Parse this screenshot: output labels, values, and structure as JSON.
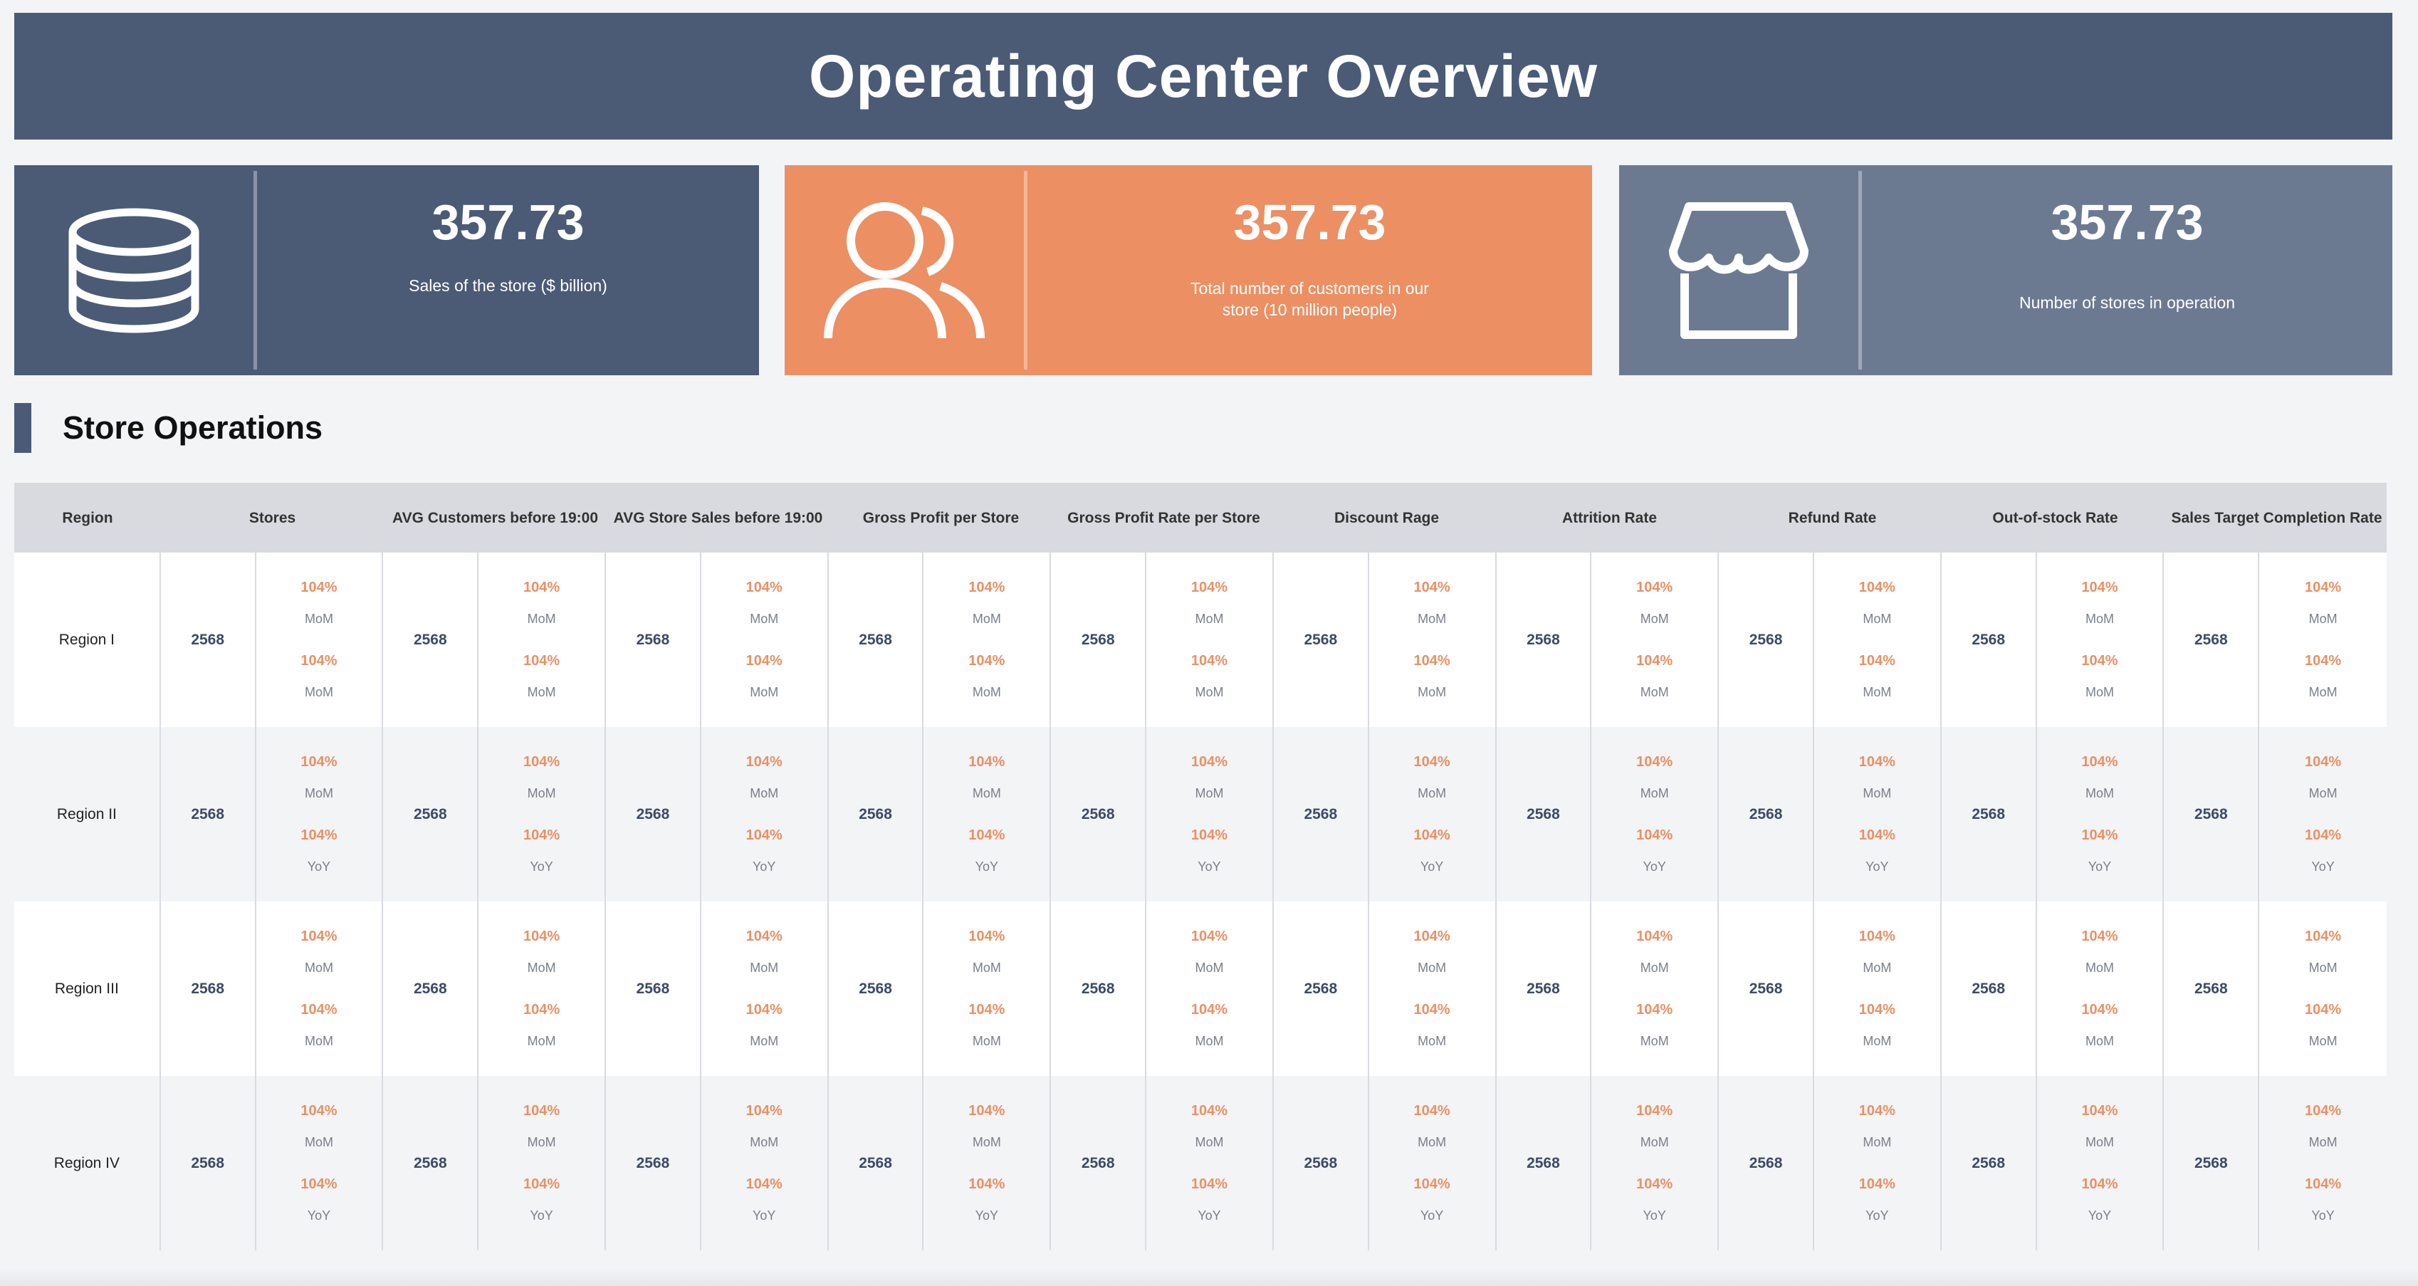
{
  "header": {
    "title": "Operating Center Overview"
  },
  "kpis": [
    {
      "value": "357.73",
      "label": "Sales of the store ($ billion)",
      "icon": "database-icon"
    },
    {
      "value": "357.73",
      "label": "Total number of customers in our store (10 million people)",
      "icon": "users-icon"
    },
    {
      "value": "357.73",
      "label": "Number of stores in operation",
      "icon": "store-icon"
    }
  ],
  "section": {
    "title": "Store Operations"
  },
  "table": {
    "headers": {
      "region": "Region",
      "stores": "Stores",
      "avg_customers": "AVG Customers before 19:00",
      "avg_sales": "AVG Store Sales before 19:00",
      "gross_profit": "Gross Profit per Store",
      "gross_profit_rate": "Gross Profit Rate per Store",
      "discount": "Discount Rage",
      "attrition": "Attrition Rate",
      "refund": "Refund Rate",
      "out_of_stock": "Out-of-stock Rate",
      "target": "Sales Target Completion Rate"
    },
    "rows": [
      {
        "region": "Region I",
        "value": "2568",
        "top_pct": "104%",
        "top_label": "MoM",
        "bottom_pct": "104%",
        "bottom_label": "MoM"
      },
      {
        "region": "Region II",
        "value": "2568",
        "top_pct": "104%",
        "top_label": "MoM",
        "bottom_pct": "104%",
        "bottom_label": "YoY"
      },
      {
        "region": "Region III",
        "value": "2568",
        "top_pct": "104%",
        "top_label": "MoM",
        "bottom_pct": "104%",
        "bottom_label": "MoM"
      },
      {
        "region": "Region IV",
        "value": "2568",
        "top_pct": "104%",
        "top_label": "MoM",
        "bottom_pct": "104%",
        "bottom_label": "YoY"
      }
    ]
  },
  "colors": {
    "primary": "#4b5b76",
    "accent": "#ec8f63",
    "secondary": "#6c7a91"
  }
}
